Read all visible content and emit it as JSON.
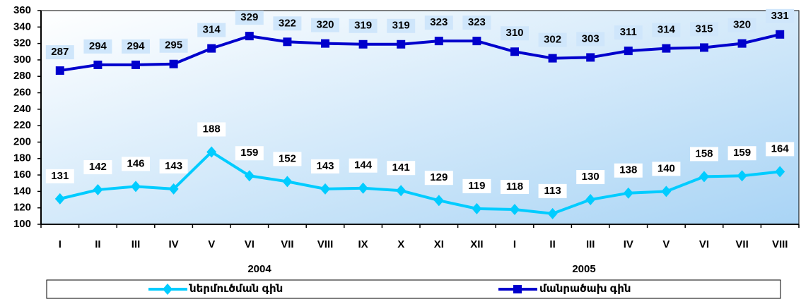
{
  "chart_data": {
    "type": "line",
    "categories": [
      "I",
      "II",
      "III",
      "IV",
      "V",
      "VI",
      "VII",
      "VIII",
      "IX",
      "X",
      "XI",
      "XII",
      "I",
      "II",
      "III",
      "IV",
      "V",
      "VI",
      "VII",
      "VIII"
    ],
    "x_groups": [
      "2004",
      "2005"
    ],
    "series": [
      {
        "name": "ներմուծման գին",
        "color": "#00ccff",
        "marker": "diamond",
        "values": [
          131,
          142,
          146,
          143,
          188,
          159,
          152,
          143,
          144,
          141,
          129,
          119,
          118,
          113,
          130,
          138,
          140,
          158,
          159,
          164
        ]
      },
      {
        "name": "մանրածախ գին",
        "color": "#0000cc",
        "marker": "square",
        "values": [
          287,
          294,
          294,
          295,
          314,
          329,
          322,
          320,
          319,
          319,
          323,
          323,
          310,
          302,
          303,
          311,
          314,
          315,
          320,
          331
        ]
      }
    ],
    "ylim": [
      100,
      360
    ],
    "yticks": [
      100,
      120,
      140,
      160,
      180,
      200,
      220,
      240,
      260,
      280,
      300,
      320,
      340,
      360
    ],
    "legend": "bottom"
  }
}
